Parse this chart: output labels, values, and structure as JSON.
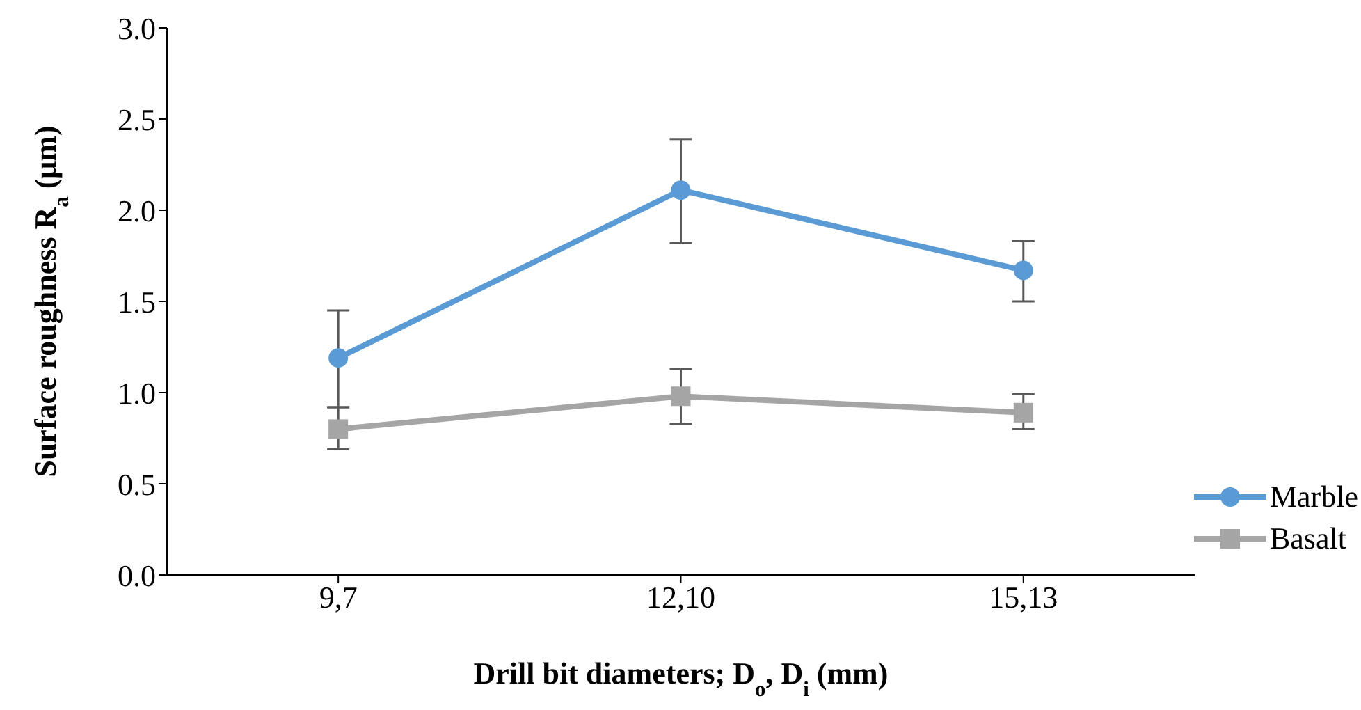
{
  "chart_data": {
    "type": "line",
    "xlabel": "Drill bit diameters; D$_{o}$, D$_{i}$  (mm)",
    "ylabel": "Surface roughness R$_{a}$ (μm)",
    "categories": [
      "9,7",
      "12,10",
      "15,13"
    ],
    "series": [
      {
        "name": "Marble",
        "color": "#5b9bd5",
        "marker": "circle",
        "values": [
          1.19,
          2.11,
          1.67
        ],
        "errors": [
          [
            0.92,
            1.45
          ],
          [
            1.82,
            2.39
          ],
          [
            1.5,
            1.83
          ]
        ]
      },
      {
        "name": "Basalt",
        "color": "#a5a5a5",
        "marker": "square",
        "values": [
          0.8,
          0.98,
          0.89
        ],
        "errors": [
          [
            0.69,
            0.92
          ],
          [
            0.83,
            1.13
          ],
          [
            0.8,
            0.99
          ]
        ]
      }
    ],
    "ylim": [
      0,
      3
    ],
    "yticks": [
      {
        "value": 0,
        "label": "0.0"
      },
      {
        "value": 0.5,
        "label": "0.5"
      },
      {
        "value": 1,
        "label": "1.0"
      },
      {
        "value": 1.5,
        "label": "1.5"
      },
      {
        "value": 2,
        "label": "2.0"
      },
      {
        "value": 2.5,
        "label": "2.5"
      },
      {
        "value": 3,
        "label": "3.0"
      }
    ],
    "grid": false,
    "legend": "bottom right",
    "line_style": "solid"
  }
}
